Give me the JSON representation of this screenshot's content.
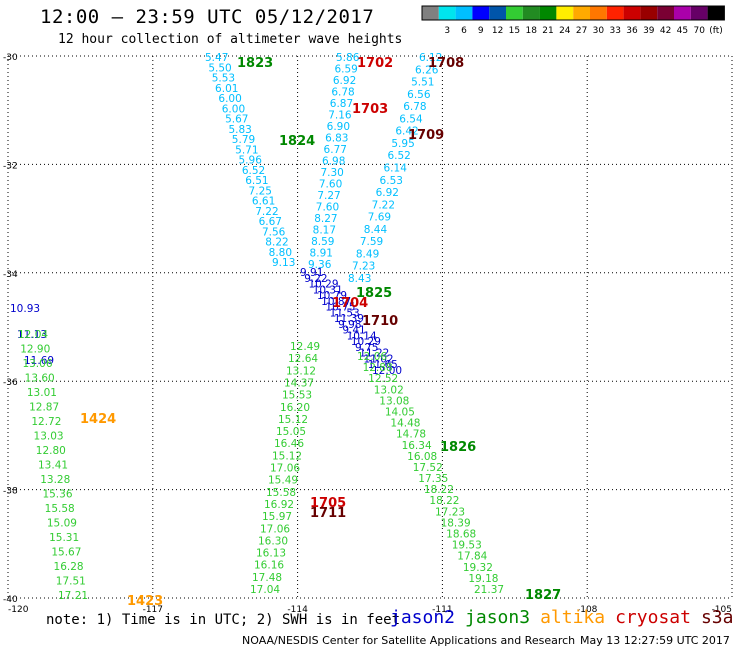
{
  "header": {
    "title": "12:00 – 23:59 UTC 05/12/2017",
    "subtitle": "12 hour collection of altimeter wave heights"
  },
  "colorbar": {
    "colors": [
      "#808080",
      "#00e5ee",
      "#00bfff",
      "#0000ff",
      "#0055aa",
      "#33cc33",
      "#228b22",
      "#008800",
      "#ffee00",
      "#ffaa00",
      "#ff7700",
      "#ff2200",
      "#cc0000",
      "#990000",
      "#7a0033",
      "#aa00aa",
      "#660066",
      "#000000"
    ],
    "labels": [
      "3",
      "6",
      "9",
      "12",
      "15",
      "18",
      "21",
      "24",
      "27",
      "30",
      "33",
      "36",
      "39",
      "42",
      "45",
      "70"
    ],
    "unit": "(ft)"
  },
  "map": {
    "lat_ticks": [
      "-30",
      "-32",
      "-34",
      "-36",
      "-38",
      "-40"
    ],
    "lon_ticks": [
      "-120",
      "-117",
      "-114",
      "-111",
      "-108",
      "-105"
    ],
    "lat_range": [
      -40,
      -30
    ],
    "lon_range": [
      -120,
      -105
    ]
  },
  "tracks": [
    {
      "id": "t1823",
      "satellite": "jason2",
      "color": "#00bfff",
      "values": [
        "5.47",
        "5.50",
        "5.53",
        "6.01",
        "6.00",
        "6.00",
        "5.67",
        "5.83",
        "5.79",
        "5.71",
        "5.96",
        "6.52",
        "6.51",
        "7.25",
        "6.61",
        "7.22",
        "6.67",
        "7.56",
        "8.22",
        "8.80",
        "9.13"
      ]
    },
    {
      "id": "t1702",
      "satellite": "jason2",
      "color": "#00bfff",
      "values": [
        "5.86",
        "6.59",
        "6.92",
        "6.78",
        "6.87",
        "7.16",
        "6.90",
        "6.83",
        "6.77",
        "6.98",
        "7.30",
        "7.60",
        "7.27",
        "7.60",
        "8.27",
        "8.17",
        "8.59",
        "8.91",
        "9.36"
      ]
    },
    {
      "id": "t1708",
      "satellite": "jason2",
      "color": "#00bfff",
      "values": [
        "6.12",
        "6.26",
        "5.51",
        "6.56",
        "6.78",
        "6.54",
        "6.42",
        "5.95",
        "6.52",
        "6.14",
        "6.53",
        "6.92",
        "7.22",
        "7.69",
        "8.44",
        "7.59",
        "8.49",
        "7.23",
        "8.43"
      ]
    },
    {
      "id": "t1704",
      "satellite": "jason2",
      "color": "#0000cc",
      "values": [
        "9.91",
        "9.22",
        "10.29",
        "10.31",
        "10.79",
        "10.87",
        "10.75",
        "11.53",
        "11.39",
        "9.98",
        "9.41",
        "10.14",
        "10.29",
        "9.75",
        "11.22",
        "11.02",
        "11.65",
        "12.00"
      ]
    },
    {
      "id": "t1424",
      "satellite": "jason2",
      "color": "#0000cc",
      "values": [
        "10.93",
        "11.13",
        "11.69"
      ]
    },
    {
      "id": "t1424g",
      "satellite": "jason3",
      "color": "#33cc33",
      "values": [
        "12.04",
        "12.90",
        "13.06",
        "13.60",
        "13.01",
        "12.87",
        "12.72",
        "13.03",
        "12.80",
        "13.41",
        "13.28",
        "15.36",
        "15.58",
        "15.09",
        "15.31",
        "15.67",
        "16.28",
        "17.51",
        "17.21"
      ]
    },
    {
      "id": "t1705",
      "satellite": "jason3",
      "color": "#33cc33",
      "values": [
        "12.49",
        "12.64",
        "13.12",
        "14.37",
        "15.53",
        "16.20",
        "15.12",
        "15.05",
        "16.46",
        "15.12",
        "17.06",
        "15.49",
        "15.58",
        "16.92",
        "15.97",
        "17.06",
        "16.30",
        "16.13",
        "16.16",
        "17.48",
        "17.04"
      ]
    },
    {
      "id": "t1710",
      "satellite": "jason3",
      "color": "#33cc33",
      "values": [
        "12.06",
        "12.88",
        "12.52",
        "13.02",
        "13.08",
        "14.05",
        "14.48",
        "14.78",
        "16.34",
        "16.08",
        "17.52",
        "17.35",
        "18.22",
        "18.22",
        "17.23",
        "18.39",
        "18.68",
        "19.53",
        "17.84",
        "19.32",
        "19.18",
        "21.37"
      ]
    }
  ],
  "pass_labels": [
    {
      "text": "1823",
      "color": "#008800"
    },
    {
      "text": "1702",
      "color": "#cc0000"
    },
    {
      "text": "1708",
      "color": "#660000"
    },
    {
      "text": "1703",
      "color": "#cc0000"
    },
    {
      "text": "1709",
      "color": "#660000"
    },
    {
      "text": "1824",
      "color": "#008800"
    },
    {
      "text": "1825",
      "color": "#008800"
    },
    {
      "text": "1704",
      "color": "#cc0000"
    },
    {
      "text": "1710",
      "color": "#660000"
    },
    {
      "text": "1424",
      "color": "#ff9900"
    },
    {
      "text": "1826",
      "color": "#008800"
    },
    {
      "text": "1705",
      "color": "#cc0000"
    },
    {
      "text": "1711",
      "color": "#660000"
    },
    {
      "text": "1423",
      "color": "#ff9900"
    },
    {
      "text": "1827",
      "color": "#008800"
    }
  ],
  "note": "note: 1) Time is in UTC; 2) SWH is in feet",
  "satellites": [
    {
      "name": "jason2",
      "color": "#0000cc"
    },
    {
      "name": "jason3",
      "color": "#008800"
    },
    {
      "name": "altika",
      "color": "#ff9900"
    },
    {
      "name": "cryosat",
      "color": "#cc0000"
    },
    {
      "name": "s3a",
      "color": "#660000"
    }
  ],
  "footer": {
    "agency": "NOAA/NESDIS Center for Satellite Applications and Research",
    "timestamp": "May 13 12:27:59 UTC 2017"
  }
}
